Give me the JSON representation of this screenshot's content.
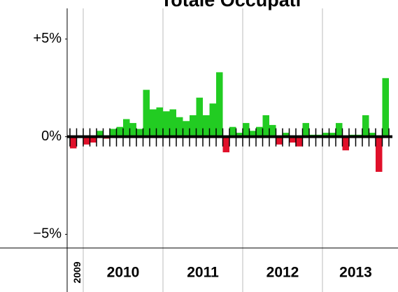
{
  "chart_data": {
    "type": "bar",
    "title": "Totale Occupati",
    "values": [
      -0.6,
      0,
      -0.4,
      -0.3,
      0.3,
      -0.1,
      0.4,
      0.5,
      0.9,
      0.7,
      0.4,
      2.4,
      1.4,
      1.5,
      1.3,
      1.4,
      1.0,
      0.8,
      1.1,
      2.0,
      1.1,
      1.7,
      3.3,
      -0.8,
      0.5,
      0.2,
      0.7,
      0.3,
      0.5,
      1.1,
      0.6,
      -0.4,
      0.2,
      -0.3,
      -0.5,
      0.7,
      0.1,
      0.1,
      0.2,
      0.2,
      0.7,
      -0.7,
      0.1,
      0.1,
      1.1,
      0.2,
      -1.8,
      3.0
    ],
    "groups": [
      {
        "label": "2009",
        "count": 2
      },
      {
        "label": "2010",
        "count": 12
      },
      {
        "label": "2011",
        "count": 12
      },
      {
        "label": "2012",
        "count": 12
      },
      {
        "label": "2013",
        "count": 10
      }
    ],
    "positive_color": "#22cc22",
    "negative_color": "#e0102a",
    "ylim": [
      -5.7,
      7.0
    ],
    "yticks": [
      {
        "value": 5,
        "label": "+5%"
      },
      {
        "value": 0,
        "label": "0%"
      },
      {
        "value": -5,
        "label": "−5%"
      }
    ]
  }
}
